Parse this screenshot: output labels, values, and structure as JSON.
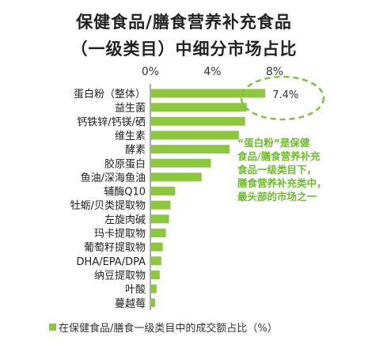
{
  "title_line1": "保健食品/膳食营养补充食品",
  "title_line2": "（一级类目）中细分市场占比",
  "annotation": [
    "“蛋白粉”是保健",
    "食品/膳食营养补充",
    "食品一级类目下，",
    "膳食营养补充类中，",
    "最头部的市场之一"
  ],
  "colors": {
    "bar": "#8dc63f",
    "annotation": "#6dbb2c",
    "ellipse": "#7cc242"
  },
  "chart_data": {
    "type": "bar",
    "orientation": "horizontal",
    "categories": [
      "蛋白粉（整体）",
      "益生菌",
      "钙铁锌/钙镁/硒",
      "维生素",
      "酵素",
      "胶原蛋白",
      "鱼油/深海鱼油",
      "辅酶Q10",
      "牡蛎/贝类提取物",
      "左旋肉碱",
      "玛卡提取物",
      "葡萄籽提取物",
      "DHA/EPA/DPA",
      "纳豆提取物",
      "叶酸",
      "蔓越莓"
    ],
    "series": [
      {
        "name": "在保健食品/膳食一级类目中的成交额占比（%）",
        "values": [
          7.4,
          6.2,
          6.1,
          5.7,
          5.1,
          3.9,
          3.3,
          1.6,
          1.3,
          1.2,
          1.0,
          0.8,
          0.7,
          0.6,
          0.4,
          0.3
        ]
      }
    ],
    "xlim": [
      0,
      8
    ],
    "xticks": [
      "0%",
      "4%",
      "8%"
    ],
    "xtick_values": [
      0,
      4,
      8
    ],
    "data_labels": [
      "7.4%"
    ],
    "legend": "在保健食品/膳食一级类目中的成交额占比（%）",
    "legend_position": "bottom-left"
  }
}
